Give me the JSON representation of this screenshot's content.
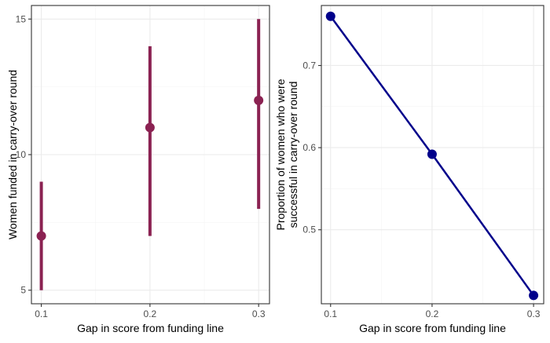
{
  "chart_data": [
    {
      "type": "scatter",
      "title": "",
      "xlabel": "Gap in score from funding line",
      "ylabel": "Women funded in carry-over round",
      "x": [
        0.1,
        0.2,
        0.3
      ],
      "y": [
        7,
        11,
        12
      ],
      "error_low": [
        5,
        7,
        8
      ],
      "error_high": [
        9,
        14,
        15
      ],
      "xlim": [
        0.0909,
        0.31
      ],
      "ylim": [
        4.5,
        15.5
      ],
      "x_ticks": [
        "0.1",
        "0.2",
        "0.3"
      ],
      "y_ticks": [
        "5",
        "10",
        "15"
      ],
      "color": "#8b2252",
      "grid": true,
      "legend": "none"
    },
    {
      "type": "line",
      "title": "",
      "xlabel": "Gap in score from funding line",
      "ylabel_lines": [
        "Proportion of women who were",
        "successful in carry-over round"
      ],
      "x": [
        0.1,
        0.2,
        0.3
      ],
      "y": [
        0.76,
        0.592,
        0.42
      ],
      "xlim": [
        0.0909,
        0.31
      ],
      "ylim": [
        0.4099,
        0.7731
      ],
      "x_ticks": [
        "0.1",
        "0.2",
        "0.3"
      ],
      "y_ticks": [
        "0.5",
        "0.6",
        "0.7"
      ],
      "color": "#00008b",
      "grid": true,
      "legend": "none"
    }
  ]
}
